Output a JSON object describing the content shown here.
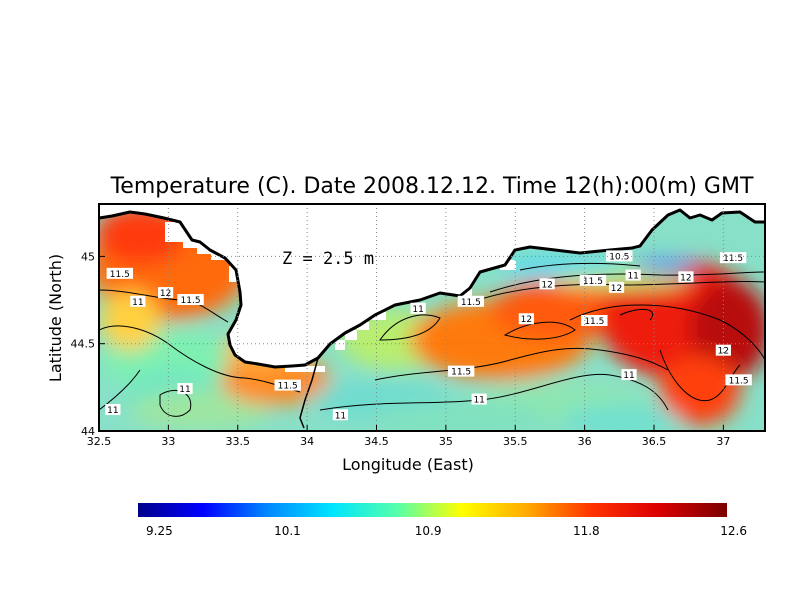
{
  "title": "Temperature (C). Date 2008.12.12. Time 12(h):00(m) GMT",
  "depth_label": "Z = 2.5 m",
  "xlabel": "Longitude (East)",
  "ylabel": "Latitude (North)",
  "x_ticks": [
    "32.5",
    "33",
    "33.5",
    "34",
    "34.5",
    "35",
    "35.5",
    "36",
    "36.5",
    "37"
  ],
  "y_ticks": [
    "44",
    "44.5",
    "45"
  ],
  "colorbar": {
    "ticks": [
      "9.25",
      "10.1",
      "10.9",
      "11.8",
      "12.6"
    ],
    "colors": [
      "#00008b",
      "#0000ff",
      "#0088ff",
      "#00e5ff",
      "#55ffaa",
      "#ffff00",
      "#ffaa00",
      "#ff3300",
      "#dd0000",
      "#7a0000"
    ]
  },
  "contour_labels": [
    {
      "text": "11.5",
      "lon": 32.65,
      "lat": 44.9
    },
    {
      "text": "12",
      "lon": 32.98,
      "lat": 44.79
    },
    {
      "text": "11.5",
      "lon": 33.16,
      "lat": 44.75
    },
    {
      "text": "11",
      "lon": 32.78,
      "lat": 44.74
    },
    {
      "text": "11",
      "lon": 33.12,
      "lat": 44.24
    },
    {
      "text": "11",
      "lon": 32.6,
      "lat": 44.12
    },
    {
      "text": "11.5",
      "lon": 33.86,
      "lat": 44.26
    },
    {
      "text": "11",
      "lon": 34.24,
      "lat": 44.09
    },
    {
      "text": "11",
      "lon": 34.8,
      "lat": 44.7
    },
    {
      "text": "11.5",
      "lon": 35.18,
      "lat": 44.74
    },
    {
      "text": "10.5",
      "lon": 36.25,
      "lat": 45.0
    },
    {
      "text": "11.5",
      "lon": 37.07,
      "lat": 44.99
    },
    {
      "text": "12",
      "lon": 35.73,
      "lat": 44.84
    },
    {
      "text": "11.5",
      "lon": 36.06,
      "lat": 44.86
    },
    {
      "text": "12",
      "lon": 36.23,
      "lat": 44.82
    },
    {
      "text": "11",
      "lon": 36.35,
      "lat": 44.89
    },
    {
      "text": "12",
      "lon": 36.73,
      "lat": 44.88
    },
    {
      "text": "12",
      "lon": 35.58,
      "lat": 44.64
    },
    {
      "text": "11.5",
      "lon": 36.07,
      "lat": 44.63
    },
    {
      "text": "11.5",
      "lon": 35.11,
      "lat": 44.34
    },
    {
      "text": "11",
      "lon": 35.24,
      "lat": 44.18
    },
    {
      "text": "11",
      "lon": 36.32,
      "lat": 44.32
    },
    {
      "text": "12",
      "lon": 37.0,
      "lat": 44.46
    },
    {
      "text": "11.5",
      "lon": 37.11,
      "lat": 44.29
    }
  ]
}
